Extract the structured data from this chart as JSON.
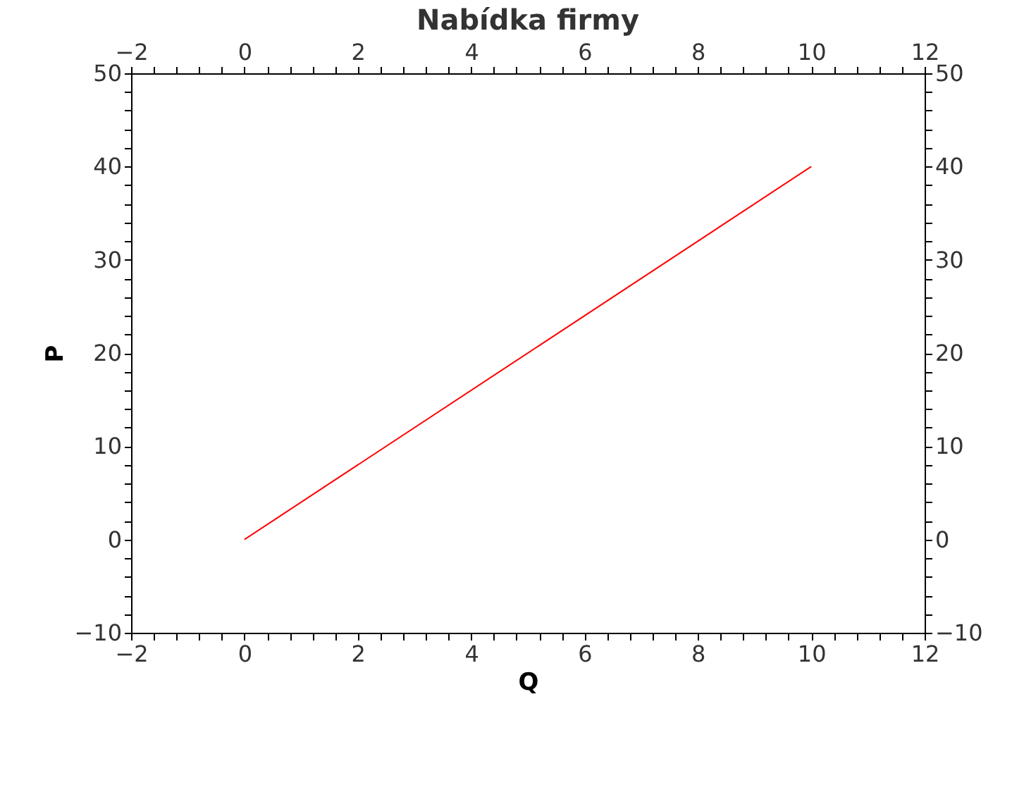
{
  "chart_data": {
    "type": "line",
    "title": "Nabídka firmy",
    "xlabel": "Q",
    "ylabel": "P",
    "series": [
      {
        "color": "#ff0000",
        "x": [
          0,
          10
        ],
        "values": [
          0,
          40
        ]
      }
    ],
    "xlim": [
      -2,
      12
    ],
    "ylim": [
      -10,
      50
    ],
    "x2lim": [
      -2,
      12
    ],
    "y2lim": [
      -10,
      50
    ],
    "xticks": [
      -2,
      {
        "value": -1.6,
        "label": null
      },
      {
        "value": -1.2,
        "label": null
      },
      {
        "value": -0.8,
        "label": null
      },
      {
        "value": -0.4,
        "label": null
      },
      0,
      {
        "value": 0.4,
        "label": null
      },
      {
        "value": 0.8,
        "label": null
      },
      {
        "value": 1.2,
        "label": null
      },
      {
        "value": 1.6,
        "label": null
      },
      2,
      {
        "value": 2.4,
        "label": null
      },
      {
        "value": 2.8,
        "label": null
      },
      {
        "value": 3.2,
        "label": null
      },
      {
        "value": 3.6,
        "label": null
      },
      4,
      {
        "value": 4.4,
        "label": null
      },
      {
        "value": 4.8,
        "label": null
      },
      {
        "value": 5.2,
        "label": null
      },
      {
        "value": 5.6,
        "label": null
      },
      6,
      {
        "value": 6.4,
        "label": null
      },
      {
        "value": 6.8,
        "label": null
      },
      {
        "value": 7.2,
        "label": null
      },
      {
        "value": 7.6,
        "label": null
      },
      8,
      {
        "value": 8.4,
        "label": null
      },
      {
        "value": 8.8,
        "label": null
      },
      {
        "value": 9.2,
        "label": null
      },
      {
        "value": 9.6,
        "label": null
      },
      10,
      {
        "value": 10.4,
        "label": null
      },
      {
        "value": 10.8,
        "label": null
      },
      {
        "value": 11.2,
        "label": null
      },
      {
        "value": 11.6,
        "label": null
      },
      12
    ],
    "x2ticks": [
      -2,
      {
        "value": -1.6,
        "label": null
      },
      {
        "value": -1.2,
        "label": null
      },
      {
        "value": -0.8,
        "label": null
      },
      {
        "value": -0.4,
        "label": null
      },
      0,
      {
        "value": 0.4,
        "label": null
      },
      {
        "value": 0.8,
        "label": null
      },
      {
        "value": 1.2,
        "label": null
      },
      {
        "value": 1.6,
        "label": null
      },
      2,
      {
        "value": 2.4,
        "label": null
      },
      {
        "value": 2.8,
        "label": null
      },
      {
        "value": 3.2,
        "label": null
      },
      {
        "value": 3.6,
        "label": null
      },
      4,
      {
        "value": 4.4,
        "label": null
      },
      {
        "value": 4.8,
        "label": null
      },
      {
        "value": 5.2,
        "label": null
      },
      {
        "value": 5.6,
        "label": null
      },
      6,
      {
        "value": 6.4,
        "label": null
      },
      {
        "value": 6.8,
        "label": null
      },
      {
        "value": 7.2,
        "label": null
      },
      {
        "value": 7.6,
        "label": null
      },
      8,
      {
        "value": 8.4,
        "label": null
      },
      {
        "value": 8.8,
        "label": null
      },
      {
        "value": 9.2,
        "label": null
      },
      {
        "value": 9.6,
        "label": null
      },
      10,
      {
        "value": 10.4,
        "label": null
      },
      {
        "value": 10.8,
        "label": null
      },
      {
        "value": 11.2,
        "label": null
      },
      {
        "value": 11.6,
        "label": null
      },
      12
    ],
    "yticks": [
      -10,
      {
        "value": -8,
        "label": null
      },
      {
        "value": -6,
        "label": null
      },
      {
        "value": -4,
        "label": null
      },
      {
        "value": -2,
        "label": null
      },
      0,
      {
        "value": 2,
        "label": null
      },
      {
        "value": 4,
        "label": null
      },
      {
        "value": 6,
        "label": null
      },
      {
        "value": 8,
        "label": null
      },
      10,
      {
        "value": 12,
        "label": null
      },
      {
        "value": 14,
        "label": null
      },
      {
        "value": 16,
        "label": null
      },
      {
        "value": 18,
        "label": null
      },
      20,
      {
        "value": 22,
        "label": null
      },
      {
        "value": 24,
        "label": null
      },
      {
        "value": 26,
        "label": null
      },
      {
        "value": 28,
        "label": null
      },
      30,
      {
        "value": 32,
        "label": null
      },
      {
        "value": 34,
        "label": null
      },
      {
        "value": 36,
        "label": null
      },
      {
        "value": 38,
        "label": null
      },
      40,
      {
        "value": 42,
        "label": null
      },
      {
        "value": 44,
        "label": null
      },
      {
        "value": 46,
        "label": null
      },
      {
        "value": 48,
        "label": null
      },
      50
    ],
    "y2ticks": [
      -10,
      {
        "value": -8,
        "label": null
      },
      {
        "value": -6,
        "label": null
      },
      {
        "value": -4,
        "label": null
      },
      {
        "value": -2,
        "label": null
      },
      0,
      {
        "value": 2,
        "label": null
      },
      {
        "value": 4,
        "label": null
      },
      {
        "value": 6,
        "label": null
      },
      {
        "value": 8,
        "label": null
      },
      10,
      {
        "value": 12,
        "label": null
      },
      {
        "value": 14,
        "label": null
      },
      {
        "value": 16,
        "label": null
      },
      {
        "value": 18,
        "label": null
      },
      20,
      {
        "value": 22,
        "label": null
      },
      {
        "value": 24,
        "label": null
      },
      {
        "value": 26,
        "label": null
      },
      {
        "value": 28,
        "label": null
      },
      30,
      {
        "value": 32,
        "label": null
      },
      {
        "value": 34,
        "label": null
      },
      {
        "value": 36,
        "label": null
      },
      {
        "value": 38,
        "label": null
      },
      40,
      {
        "value": 42,
        "label": null
      },
      {
        "value": 44,
        "label": null
      },
      {
        "value": 46,
        "label": null
      },
      {
        "value": 48,
        "label": null
      },
      50
    ],
    "marker": "none",
    "line_style": "solid"
  }
}
